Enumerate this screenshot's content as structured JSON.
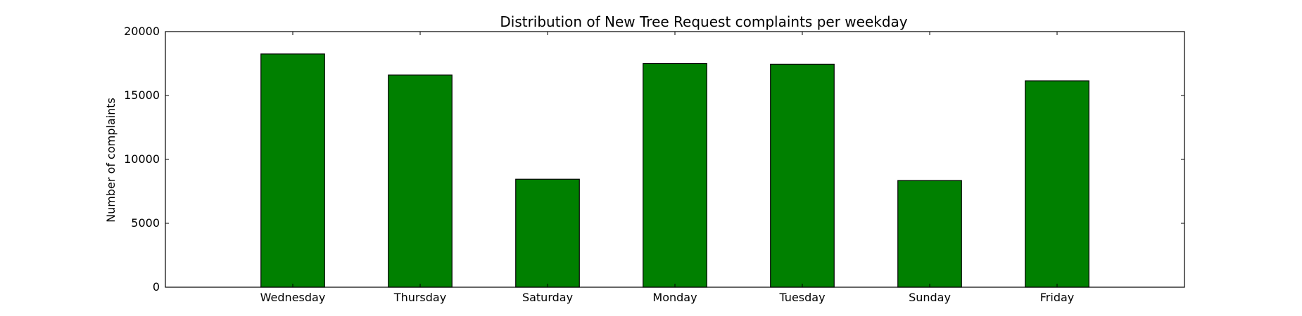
{
  "chart_data": {
    "type": "bar",
    "title": "Distribution of  New Tree Request complaints per weekday",
    "xlabel": "",
    "ylabel": "Number of complaints",
    "categories": [
      "Wednesday",
      "Thursday",
      "Saturday",
      "Monday",
      "Tuesday",
      "Sunday",
      "Friday"
    ],
    "values": [
      18250,
      16600,
      8450,
      17500,
      17450,
      8350,
      16150
    ],
    "ylim": [
      0,
      20000
    ],
    "yticks": [
      "0",
      "5000",
      "10000",
      "15000",
      "20000"
    ],
    "bar_color": "#008000",
    "edge_color": "#000000",
    "grid": false,
    "legend": "none"
  }
}
